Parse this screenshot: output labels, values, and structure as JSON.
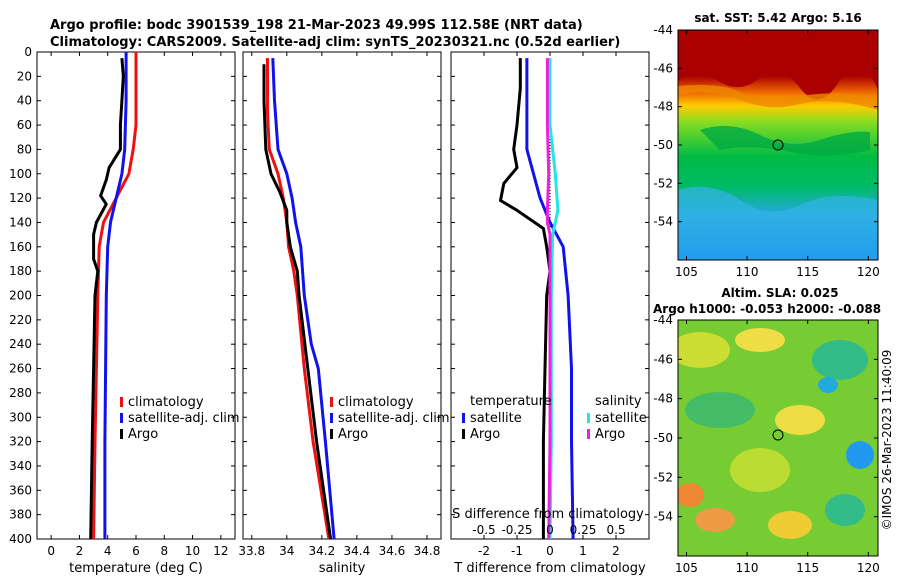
{
  "colors": {
    "climatology": "#ee1111",
    "satellite": "#1111ee",
    "argo": "#000000",
    "sal_satellite": "#22e5e5",
    "sal_argo": "#ee22dd"
  },
  "title": {
    "line1": "Argo profile: bodc 3901539_198 21-Mar-2023 49.99S 112.58E (NRT data)",
    "line2": "Climatology: CARS2009. Satellite-adj clim: synTS_20230321.nc (0.52d earlier)"
  },
  "sst_map": {
    "title": "sat. SST: 5.42 Argo: 5.16",
    "yticks": [
      "-44",
      "-46",
      "-48",
      "-50",
      "-52",
      "-54"
    ],
    "xticks": [
      "105",
      "110",
      "115",
      "120"
    ]
  },
  "sla_map": {
    "title1": "Altim. SLA: 0.025",
    "title2": "Argo h1000: -0.053 h2000: -0.088",
    "yticks": [
      "-44",
      "-46",
      "-48",
      "-50",
      "-52",
      "-54"
    ],
    "xticks": [
      "105",
      "110",
      "115",
      "120"
    ]
  },
  "credit": "©IMOS 26-Mar-2023 11:40:09",
  "chart_data": [
    {
      "type": "line",
      "xlabel": "temperature (deg C)",
      "ylabel": "",
      "xlim": [
        -1,
        13
      ],
      "ylim": [
        0,
        400
      ],
      "xticks": [
        "0",
        "2",
        "4",
        "6",
        "8",
        "10",
        "12"
      ],
      "yticks": [
        "0",
        "20",
        "40",
        "60",
        "80",
        "100",
        "120",
        "140",
        "160",
        "180",
        "200",
        "220",
        "240",
        "260",
        "280",
        "300",
        "320",
        "340",
        "360",
        "380",
        "400"
      ],
      "legend": [
        "climatology",
        "satellite-adj. clim",
        "Argo"
      ],
      "series": [
        {
          "name": "climatology",
          "depth": [
            0,
            20,
            60,
            80,
            100,
            120,
            140,
            160,
            200,
            260,
            320,
            400
          ],
          "values": [
            6.0,
            6.0,
            6.0,
            5.8,
            5.5,
            4.6,
            3.7,
            3.4,
            3.3,
            3.2,
            3.1,
            3.0
          ]
        },
        {
          "name": "satellite-adj. clim",
          "depth": [
            0,
            40,
            80,
            100,
            120,
            140,
            160,
            200,
            260,
            320,
            400
          ],
          "values": [
            5.3,
            5.3,
            5.2,
            5.0,
            4.6,
            4.2,
            4.0,
            3.9,
            3.85,
            3.8,
            3.8
          ]
        },
        {
          "name": "Argo",
          "depth": [
            5,
            20,
            40,
            60,
            80,
            95,
            105,
            118,
            125,
            140,
            150,
            170,
            180,
            200,
            260,
            320,
            400
          ],
          "values": [
            5.0,
            5.1,
            5.0,
            4.9,
            4.9,
            4.1,
            3.9,
            3.5,
            3.9,
            3.2,
            3.0,
            3.0,
            3.3,
            3.1,
            3.0,
            2.9,
            2.8
          ]
        }
      ]
    },
    {
      "type": "line",
      "xlabel": "salinity",
      "xlim": [
        33.75,
        34.88
      ],
      "ylim": [
        0,
        400
      ],
      "xticks": [
        "33.8",
        "34",
        "34.2",
        "34.4",
        "34.6",
        "34.8"
      ],
      "legend": [
        "climatology",
        "satellite-adj. clim",
        "Argo"
      ],
      "series": [
        {
          "name": "climatology",
          "depth": [
            5,
            50,
            80,
            100,
            120,
            140,
            160,
            180,
            200,
            260,
            320,
            400
          ],
          "values": [
            33.89,
            33.89,
            33.9,
            33.95,
            33.98,
            34.0,
            34.01,
            34.04,
            34.06,
            34.1,
            34.15,
            34.24
          ]
        },
        {
          "name": "satellite-adj. clim",
          "depth": [
            5,
            40,
            80,
            100,
            120,
            140,
            160,
            200,
            240,
            260,
            320,
            400
          ],
          "values": [
            33.92,
            33.93,
            33.95,
            34.0,
            34.03,
            34.05,
            34.08,
            34.1,
            34.14,
            34.18,
            34.22,
            34.27
          ]
        },
        {
          "name": "Argo",
          "depth": [
            10,
            40,
            80,
            100,
            115,
            130,
            140,
            160,
            180,
            200,
            260,
            320,
            400
          ],
          "values": [
            33.87,
            33.87,
            33.88,
            33.91,
            33.96,
            34.0,
            34.0,
            34.02,
            34.06,
            34.07,
            34.12,
            34.17,
            34.25
          ]
        }
      ]
    },
    {
      "type": "line",
      "xlabel": "T difference from climatology",
      "xlim": [
        -3,
        3
      ],
      "ylim": [
        0,
        400
      ],
      "xticks": [
        "-2",
        "-1",
        "0",
        "1",
        "2"
      ],
      "secondary_xlabel": "S difference from climatology",
      "secondary_xticks": [
        "-0.5",
        "-0.25",
        "0",
        "0.25",
        "0.5"
      ],
      "legend_temperature": {
        "header": "temperature",
        "entries": [
          "satellite",
          "Argo"
        ]
      },
      "legend_salinity": {
        "header": "salinity",
        "entries": [
          "satellite",
          "Argo"
        ]
      },
      "series": [
        {
          "name": "temperature satellite",
          "depth": [
            5,
            80,
            120,
            140,
            160,
            200,
            260,
            320,
            400
          ],
          "values": [
            -0.7,
            -0.7,
            -0.3,
            0.0,
            0.4,
            0.55,
            0.65,
            0.65,
            0.7
          ]
        },
        {
          "name": "temperature Argo",
          "depth": [
            5,
            30,
            60,
            80,
            95,
            108,
            122,
            130,
            145,
            160,
            180,
            200,
            260,
            320,
            400
          ],
          "values": [
            -0.9,
            -0.9,
            -1.0,
            -1.1,
            -1.0,
            -1.4,
            -1.5,
            -1.0,
            -0.2,
            -0.1,
            0.0,
            -0.1,
            -0.15,
            -0.2,
            -0.2
          ]
        },
        {
          "name": "salinity satellite",
          "depth": [
            5,
            60,
            100,
            130,
            150,
            200,
            260,
            320,
            400
          ],
          "values": [
            0.0,
            0.0,
            0.04,
            0.06,
            0.02,
            0.01,
            0.01,
            0.01,
            0.0
          ]
        },
        {
          "name": "salinity Argo",
          "depth": [
            5,
            60,
            100,
            130,
            140,
            150,
            200,
            260,
            320,
            400
          ],
          "values": [
            -0.02,
            -0.02,
            -0.01,
            -0.02,
            -0.02,
            0.0,
            0.0,
            0.0,
            0.0,
            -0.01
          ]
        }
      ]
    }
  ]
}
